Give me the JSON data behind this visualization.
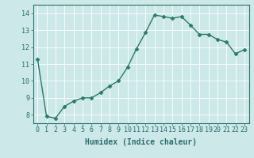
{
  "x": [
    0,
    1,
    2,
    3,
    4,
    5,
    6,
    7,
    8,
    9,
    10,
    11,
    12,
    13,
    14,
    15,
    16,
    17,
    18,
    19,
    20,
    21,
    22,
    23
  ],
  "y": [
    11.3,
    7.9,
    7.8,
    8.5,
    8.8,
    9.0,
    9.0,
    9.3,
    9.7,
    10.0,
    10.8,
    11.9,
    12.85,
    13.9,
    13.8,
    13.7,
    13.8,
    13.3,
    12.75,
    12.75,
    12.45,
    12.3,
    11.6,
    11.85
  ],
  "line_color": "#2d7a6a",
  "marker": "D",
  "markersize": 2.5,
  "linewidth": 1.0,
  "xlabel": "Humidex (Indice chaleur)",
  "xlim": [
    -0.5,
    23.5
  ],
  "ylim": [
    7.5,
    14.5
  ],
  "yticks": [
    8,
    9,
    10,
    11,
    12,
    13,
    14
  ],
  "xticks": [
    0,
    1,
    2,
    3,
    4,
    5,
    6,
    7,
    8,
    9,
    10,
    11,
    12,
    13,
    14,
    15,
    16,
    17,
    18,
    19,
    20,
    21,
    22,
    23
  ],
  "bg_color": "#cce8e8",
  "grid_color": "#ffffff",
  "tick_color": "#2d6e6e",
  "label_color": "#2d6e6e",
  "font_size": 6,
  "xlabel_fontsize": 7
}
